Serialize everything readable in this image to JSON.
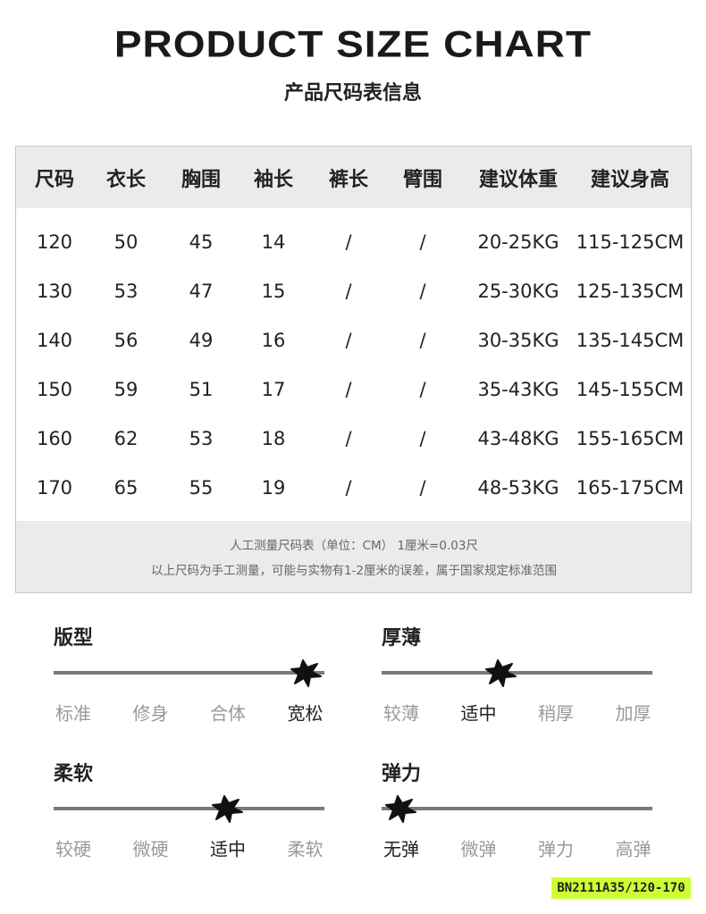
{
  "header": {
    "title": "PRODUCT SIZE CHART",
    "subtitle": "产品尺码表信息"
  },
  "table": {
    "header": [
      "尺码",
      "衣长",
      "胸围",
      "袖长",
      "裤长",
      "臂围",
      "建议体重",
      "建议身高"
    ],
    "rows": [
      [
        "120",
        "50",
        "45",
        "14",
        "/",
        "/",
        "20-25KG",
        "115-125CM"
      ],
      [
        "130",
        "53",
        "47",
        "15",
        "/",
        "/",
        "25-30KG",
        "125-135CM"
      ],
      [
        "140",
        "56",
        "49",
        "16",
        "/",
        "/",
        "30-35KG",
        "135-145CM"
      ],
      [
        "150",
        "59",
        "51",
        "17",
        "/",
        "/",
        "35-43KG",
        "145-155CM"
      ],
      [
        "160",
        "62",
        "53",
        "18",
        "/",
        "/",
        "43-48KG",
        "155-165CM"
      ],
      [
        "170",
        "65",
        "55",
        "19",
        "/",
        "/",
        "48-53KG",
        "165-175CM"
      ]
    ],
    "notes": [
      "人工测量尺码表（单位：CM） 1厘米=0.03尺",
      "以上尺码为手工测量，可能与实物有1-2厘米的误差，属于国家规定标准范围"
    ]
  },
  "attributes": [
    {
      "title": "版型",
      "options": [
        "标准",
        "修身",
        "合体",
        "宽松"
      ],
      "selected": 3
    },
    {
      "title": "厚薄",
      "options": [
        "较薄",
        "适中",
        "稍厚",
        "加厚"
      ],
      "selected": 1
    },
    {
      "title": "柔软",
      "options": [
        "较硬",
        "微硬",
        "适中",
        "柔软"
      ],
      "selected": 2
    },
    {
      "title": "弹力",
      "options": [
        "无弹",
        "微弹",
        "弹力",
        "高弹"
      ],
      "selected": 0
    }
  ],
  "footer": {
    "code": "BN2111A35/120-170"
  }
}
